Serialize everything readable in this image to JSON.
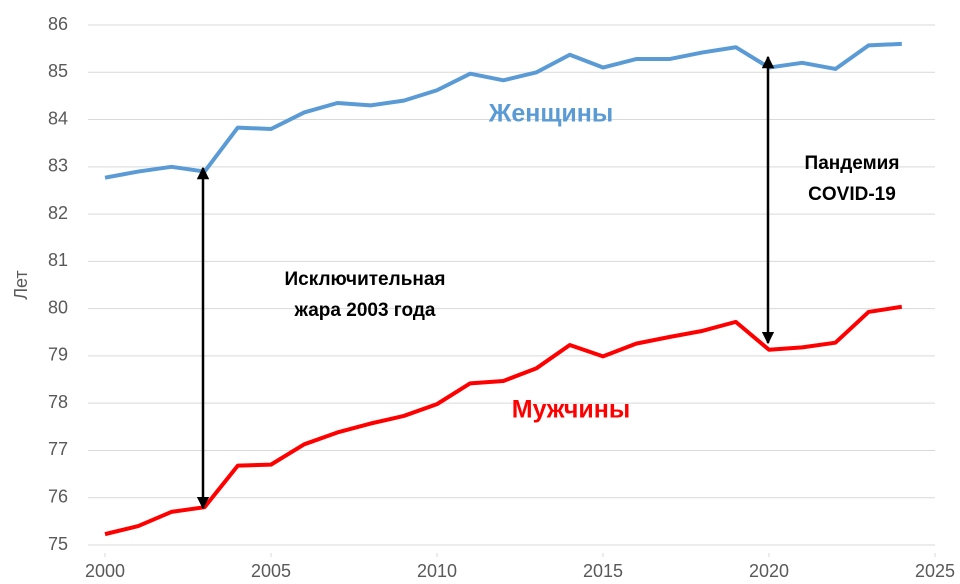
{
  "chart_data": {
    "type": "line",
    "y_label": "Лет",
    "x": [
      2000,
      2001,
      2002,
      2003,
      2004,
      2005,
      2006,
      2007,
      2008,
      2009,
      2010,
      2011,
      2012,
      2013,
      2014,
      2015,
      2016,
      2017,
      2018,
      2019,
      2020,
      2021,
      2022,
      2023,
      2024
    ],
    "series": [
      {
        "name": "Женщины",
        "color": "#5b9bd5",
        "values": [
          82.77,
          82.9,
          83.0,
          82.9,
          83.83,
          83.8,
          84.15,
          84.35,
          84.3,
          84.4,
          84.62,
          84.97,
          84.83,
          85.0,
          85.37,
          85.1,
          85.28,
          85.28,
          85.42,
          85.53,
          85.1,
          85.2,
          85.07,
          85.57,
          85.6
        ]
      },
      {
        "name": "Мужчины",
        "color": "#ff0000",
        "values": [
          75.23,
          75.4,
          75.7,
          75.8,
          76.68,
          76.7,
          77.13,
          77.38,
          77.57,
          77.73,
          77.98,
          78.42,
          78.47,
          78.74,
          79.23,
          78.99,
          79.26,
          79.4,
          79.53,
          79.72,
          79.13,
          79.18,
          79.28,
          79.93,
          80.04
        ]
      }
    ],
    "annotations": [
      {
        "lines": [
          "Исключительная",
          "жара 2003 года"
        ]
      },
      {
        "lines": [
          "Пандемия",
          "COVID-19"
        ]
      }
    ],
    "xlim": [
      2000,
      2025
    ],
    "xticks": [
      2000,
      2005,
      2010,
      2015,
      2020,
      2025
    ],
    "ylim": [
      75,
      86
    ],
    "yticks": [
      75,
      76,
      77,
      78,
      79,
      80,
      81,
      82,
      83,
      84,
      85,
      86
    ],
    "grid": true
  }
}
